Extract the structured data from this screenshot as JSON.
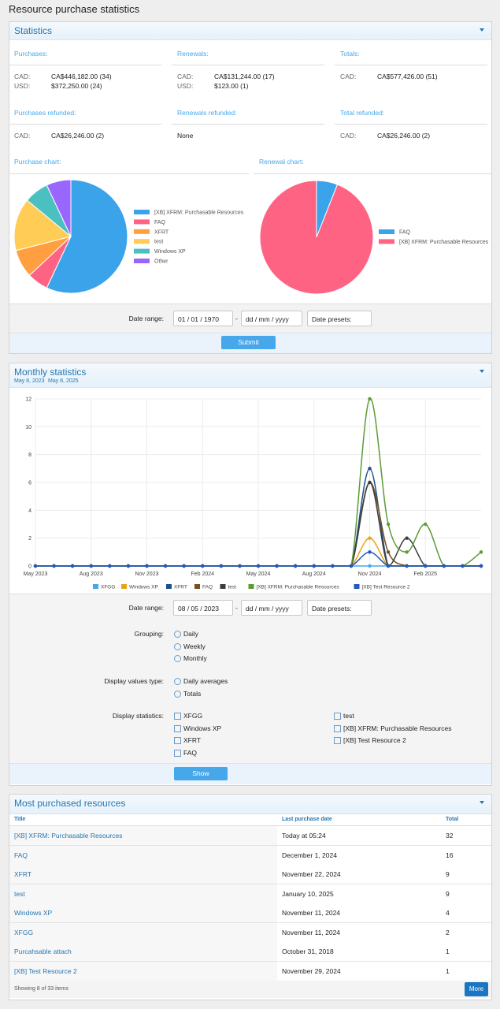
{
  "page_title": "Resource purchase statistics",
  "statistics": {
    "title": "Statistics",
    "purchases": {
      "label": "Purchases:",
      "rows": [
        [
          "CAD:",
          "CA$446,182.00 (34)"
        ],
        [
          "USD:",
          "$372,250.00 (24)"
        ]
      ]
    },
    "renewals": {
      "label": "Renewals:",
      "rows": [
        [
          "CAD:",
          "CA$131,244.00 (17)"
        ],
        [
          "USD:",
          "$123.00 (1)"
        ]
      ]
    },
    "totals": {
      "label": "Totals:",
      "rows": [
        [
          "CAD:",
          "CA$577,426.00 (51)"
        ]
      ]
    },
    "purchases_refunded": {
      "label": "Purchases refunded:",
      "rows": [
        [
          "CAD:",
          "CA$26,246.00 (2)"
        ]
      ]
    },
    "renewals_refunded": {
      "label": "Renewals refunded:",
      "text": "None"
    },
    "total_refunded": {
      "label": "Total refunded:",
      "rows": [
        [
          "CAD:",
          "CA$26,246.00 (2)"
        ]
      ]
    },
    "form": {
      "date_range_label": "Date range:",
      "start": "01 / 01 / 1970",
      "separator": "-",
      "end": "dd / mm / yyyy",
      "presets": "Date presets:",
      "submit": "Submit"
    }
  },
  "chart_data": [
    {
      "type": "pie",
      "title": "Purchase chart:",
      "categories": [
        "[XB] XFRM: Purchasable Resources",
        "FAQ",
        "XFRT",
        "test",
        "Windows XP",
        "Other"
      ],
      "values": [
        57,
        6,
        8,
        15,
        7,
        7
      ],
      "colors": [
        "#3ba3ea",
        "#ff6384",
        "#ff9f40",
        "#ffcd56",
        "#4bc0c0",
        "#9966ff"
      ]
    },
    {
      "type": "pie",
      "title": "Renewal chart:",
      "categories": [
        "FAQ",
        "[XB] XFRM: Purchasable Resources"
      ],
      "values": [
        6,
        94
      ],
      "colors": [
        "#3ba3ea",
        "#ff6384"
      ]
    },
    {
      "type": "line",
      "title": "Monthly statistics",
      "subtitle": [
        "May 8, 2023",
        "May 8, 2025"
      ],
      "categories": [
        "May 2023",
        null,
        null,
        "Aug 2023",
        null,
        null,
        "Nov 2023",
        null,
        null,
        "Feb 2024",
        null,
        null,
        "May 2024",
        null,
        null,
        "Aug 2024",
        null,
        null,
        "Nov 2024",
        null,
        null,
        "Feb 2025",
        null,
        null,
        null
      ],
      "series": [
        {
          "name": "XFGG",
          "color": "#47a7eb",
          "values": [
            0,
            0,
            0,
            0,
            0,
            0,
            0,
            0,
            0,
            0,
            0,
            0,
            0,
            0,
            0,
            0,
            0,
            0,
            0,
            0,
            0,
            0,
            0,
            0,
            0
          ]
        },
        {
          "name": "Windows XP",
          "color": "#e8a318",
          "values": [
            0,
            0,
            0,
            0,
            0,
            0,
            0,
            0,
            0,
            0,
            0,
            0,
            0,
            0,
            0,
            0,
            0,
            0,
            2,
            0,
            0,
            0,
            0,
            0,
            0
          ]
        },
        {
          "name": "XFRT",
          "color": "#1c4f8a",
          "values": [
            0,
            0,
            0,
            0,
            0,
            0,
            0,
            0,
            0,
            0,
            0,
            0,
            0,
            0,
            0,
            0,
            0,
            0,
            7,
            0,
            0,
            0,
            0,
            0,
            0
          ]
        },
        {
          "name": "FAQ",
          "color": "#7b4f1d",
          "values": [
            0,
            0,
            0,
            0,
            0,
            0,
            0,
            0,
            0,
            0,
            0,
            0,
            0,
            0,
            0,
            0,
            0,
            0,
            6,
            1,
            0,
            0,
            0,
            0,
            0
          ]
        },
        {
          "name": "test",
          "color": "#3c3c3c",
          "values": [
            0,
            0,
            0,
            0,
            0,
            0,
            0,
            0,
            0,
            0,
            0,
            0,
            0,
            0,
            0,
            0,
            0,
            0,
            6,
            0,
            2,
            0,
            0,
            0,
            0
          ]
        },
        {
          "name": "[XB] XFRM: Purchasable Resources",
          "color": "#5c9b33",
          "values": [
            0,
            0,
            0,
            0,
            0,
            0,
            0,
            0,
            0,
            0,
            0,
            0,
            0,
            0,
            0,
            0,
            0,
            0,
            12,
            3,
            1,
            3,
            0,
            0,
            1
          ]
        },
        {
          "name": "[XB] Test Resource 2",
          "color": "#2257c4",
          "values": [
            0,
            0,
            0,
            0,
            0,
            0,
            0,
            0,
            0,
            0,
            0,
            0,
            0,
            0,
            0,
            0,
            0,
            0,
            1,
            0,
            0,
            0,
            0,
            0,
            0
          ]
        }
      ],
      "ylim": [
        0,
        12
      ],
      "yticks": [
        0,
        2,
        4,
        6,
        8,
        10,
        12
      ],
      "grid": true
    }
  ],
  "monthly_form": {
    "date_range_label": "Date range:",
    "start": "08 / 05 / 2023",
    "separator": "-",
    "end": "dd / mm / yyyy",
    "presets": "Date presets:",
    "grouping_label": "Grouping:",
    "grouping": [
      "Daily",
      "Weekly",
      "Monthly"
    ],
    "values_type_label": "Display values type:",
    "values_type": [
      "Daily averages",
      "Totals"
    ],
    "statistics_label": "Display statistics:",
    "statistics": [
      "XFGG",
      "Windows XP",
      "XFRT",
      "FAQ",
      "test",
      "[XB] XFRM: Purchasable Resources",
      "[XB] Test Resource 2"
    ],
    "show": "Show"
  },
  "most_purchased": {
    "title": "Most purchased resources",
    "columns": [
      "Title",
      "Last purchase date",
      "Total"
    ],
    "rows": [
      [
        "[XB] XFRM: Purchasable Resources",
        "Today at 05:24",
        32
      ],
      [
        "FAQ",
        "December 1, 2024",
        16
      ],
      [
        "XFRT",
        "November 22, 2024",
        9
      ],
      [
        "test",
        "January 10, 2025",
        9
      ],
      [
        "Windows XP",
        "November 11, 2024",
        4
      ],
      [
        "XFGG",
        "November 11, 2024",
        2
      ],
      [
        "Purcahsable attach",
        "October 31, 2018",
        1
      ],
      [
        "[XB] Test Resource 2",
        "November 29, 2024",
        1
      ]
    ],
    "footer": "Showing 8 of 33 items",
    "more": "More"
  }
}
